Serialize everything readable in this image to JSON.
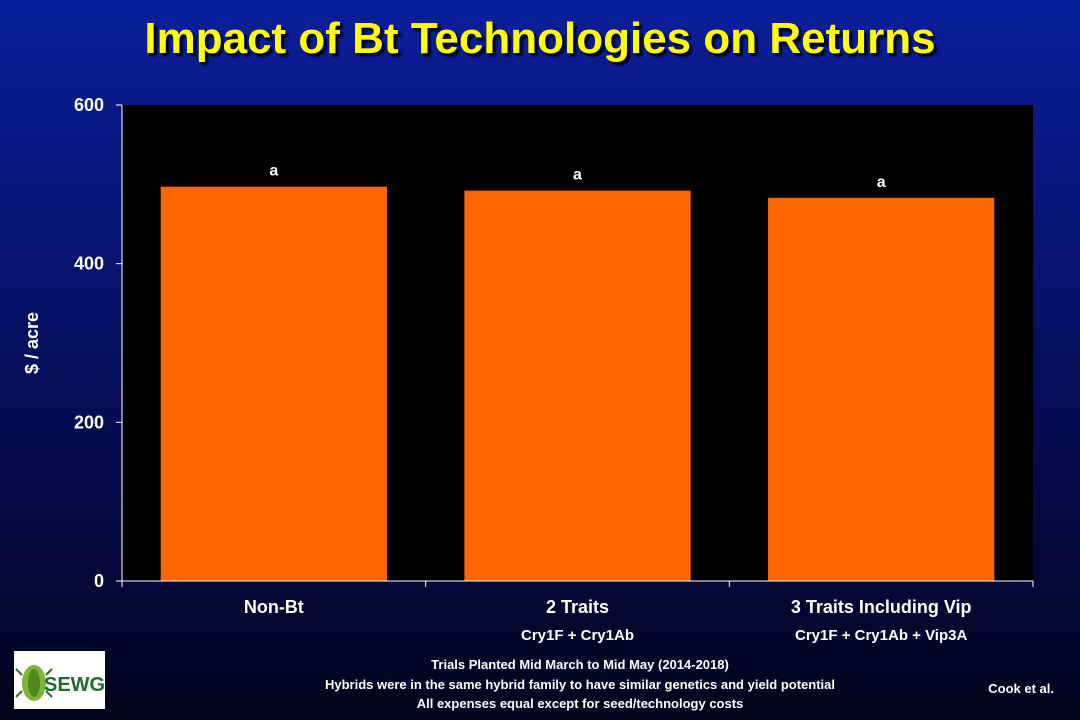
{
  "title": "Impact of Bt Technologies on Returns",
  "colors": {
    "bar": "#ff6600",
    "plot_background": "#000000",
    "title": "#ffff00",
    "text": "#ffffff"
  },
  "chart_data": {
    "type": "bar",
    "categories": [
      "Non-Bt",
      "2 Traits",
      "3 Traits Including Vip"
    ],
    "category_sublabels": [
      "",
      "Cry1F + Cry1Ab",
      "Cry1F + Cry1Ab + Vip3A"
    ],
    "values": [
      497,
      492,
      483
    ],
    "value_labels": [
      "a",
      "a",
      "a"
    ],
    "ylabel": "$ / acre",
    "xlabel": "",
    "ylim": [
      0,
      600
    ],
    "yticks": [
      0,
      200,
      400,
      600
    ],
    "grid": false,
    "legend": "none"
  },
  "footnotes": [
    "Trials Planted Mid March to Mid May (2014-2018)",
    "Hybrids were in the same hybrid family to have similar genetics and yield potential",
    "All expenses equal except for seed/technology costs"
  ],
  "credit": "Cook et al.",
  "logo": {
    "text": "SEWG",
    "icon": "insect-logo-icon"
  }
}
